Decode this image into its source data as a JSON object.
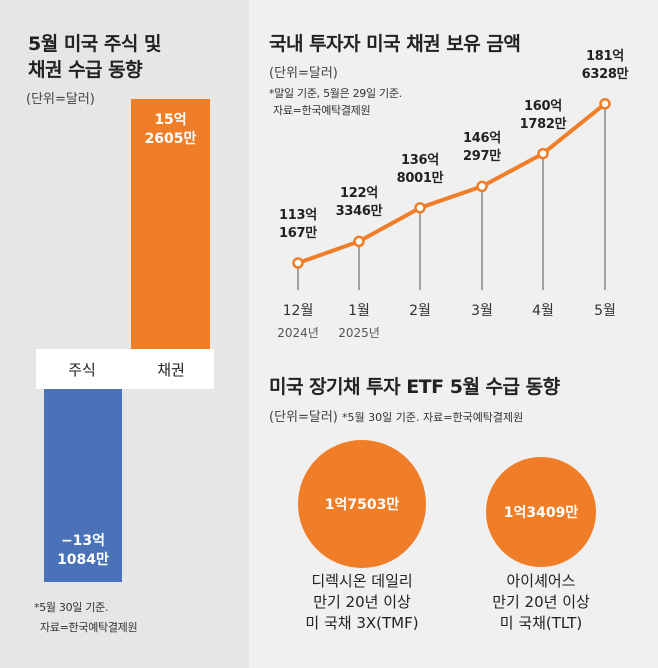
{
  "left_panel": {
    "title_line1": "5월 미국 주식 및",
    "title_line2": "채권 수급 동향",
    "unit": "(단위=달러)",
    "note_line1": "*5월 30일 기준.",
    "note_line2": "자료=한국예탁결제원"
  },
  "right_top": {
    "title": "국내 투자자 미국 채권 보유 금액",
    "unit": "(단위=달러)",
    "note_line1": "*말일 기준, 5월은 29일 기준.",
    "note_line2": "자료=한국예탁결제원"
  },
  "right_bottom": {
    "title": "미국 장기채 투자 ETF 5월 수급 동향",
    "unit": "(단위=달러)",
    "note": "*5월 30일 기준. 자료=한국예탁결제원",
    "circles": [
      {
        "value_label": "1억7503만",
        "name_line1": "디렉시온 데일리",
        "name_line2": "만기 20년 이상",
        "name_line3": "미 국채 3X(TMF)"
      },
      {
        "value_label": "1억3409만",
        "name_line1": "아이셰어스",
        "name_line2": "만기 20년 이상",
        "name_line3": "미 국채(TLT)"
      }
    ]
  },
  "chart_data": [
    {
      "type": "bar",
      "title": "5월 미국 주식 및 채권 수급 동향",
      "unit": "달러",
      "categories": [
        "주식",
        "채권"
      ],
      "values": [
        -1310840000,
        1526050000
      ],
      "data_labels": [
        {
          "line1": "−13억",
          "line2": "1084만"
        },
        {
          "line1": "15억",
          "line2": "2605만"
        }
      ],
      "colors": [
        "#4a72b8",
        "#f07d27"
      ]
    },
    {
      "type": "line",
      "title": "국내 투자자 미국 채권 보유 금액",
      "unit": "달러",
      "x": [
        "12월",
        "1월",
        "2월",
        "3월",
        "4월",
        "5월"
      ],
      "year_labels": [
        "2024년",
        "2025년",
        "",
        "",
        "",
        ""
      ],
      "values": [
        11301670000,
        12233460000,
        13680010000,
        14602970000,
        16017820000,
        18163280000
      ],
      "data_labels": [
        {
          "line1": "113억",
          "line2": "167만"
        },
        {
          "line1": "122억",
          "line2": "3346만"
        },
        {
          "line1": "136억",
          "line2": "8001만"
        },
        {
          "line1": "146억",
          "line2": "297만"
        },
        {
          "line1": "160억",
          "line2": "1782만"
        },
        {
          "line1": "181억",
          "line2": "6328만"
        }
      ],
      "color": "#f07d27"
    },
    {
      "type": "bubble",
      "title": "미국 장기채 투자 ETF 5월 수급 동향",
      "unit": "달러",
      "categories": [
        "TMF",
        "TLT"
      ],
      "values": [
        175030000,
        134090000
      ],
      "color": "#f07d27"
    }
  ]
}
